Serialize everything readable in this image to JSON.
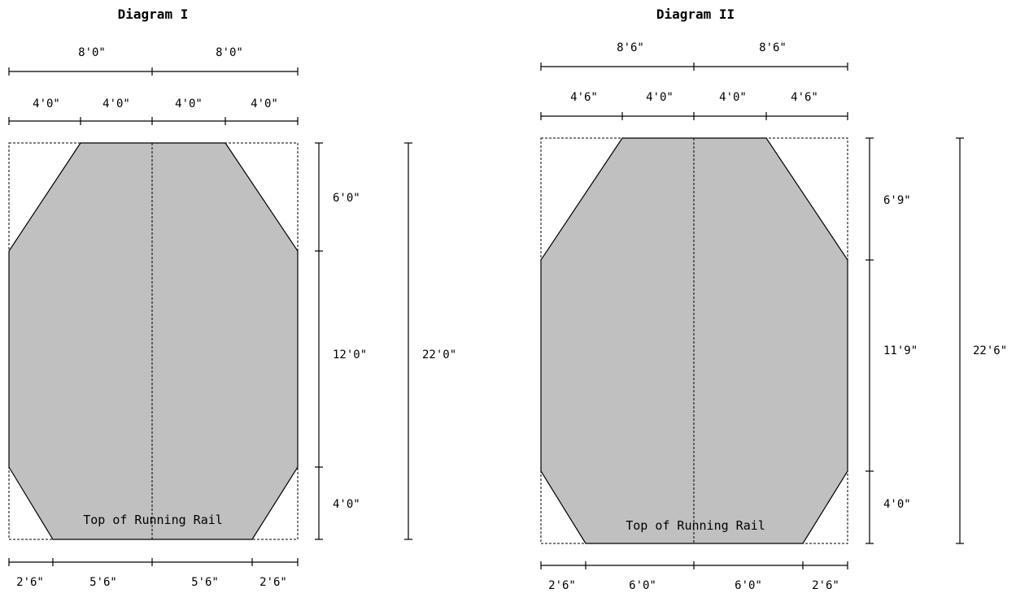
{
  "diagram1": {
    "title": "Diagram I",
    "top_half": [
      "8'0\"",
      "8'0\""
    ],
    "top_quarters": [
      "4'0\"",
      "4'0\"",
      "4'0\"",
      "4'0\""
    ],
    "right_segments": [
      "6'0\"",
      "12'0\"",
      "4'0\""
    ],
    "total_height": "22'0\"",
    "bottom": [
      "2'6\"",
      "5'6\"",
      "5'6\"",
      "2'6\""
    ],
    "rail_label": "Top of Running Rail"
  },
  "diagram2": {
    "title": "Diagram II",
    "top_half": [
      "8'6\"",
      "8'6\""
    ],
    "top_quarters": [
      "4'6\"",
      "4'0\"",
      "4'0\"",
      "4'6\""
    ],
    "right_segments": [
      "6'9\"",
      "11'9\"",
      "4'0\""
    ],
    "total_height": "22'6\"",
    "bottom": [
      "2'6\"",
      "6'0\"",
      "6'0\"",
      "2'6\""
    ],
    "rail_label": "Top of Running Rail"
  },
  "colors": {
    "fill": "#c0c0c0",
    "line": "#000000"
  }
}
